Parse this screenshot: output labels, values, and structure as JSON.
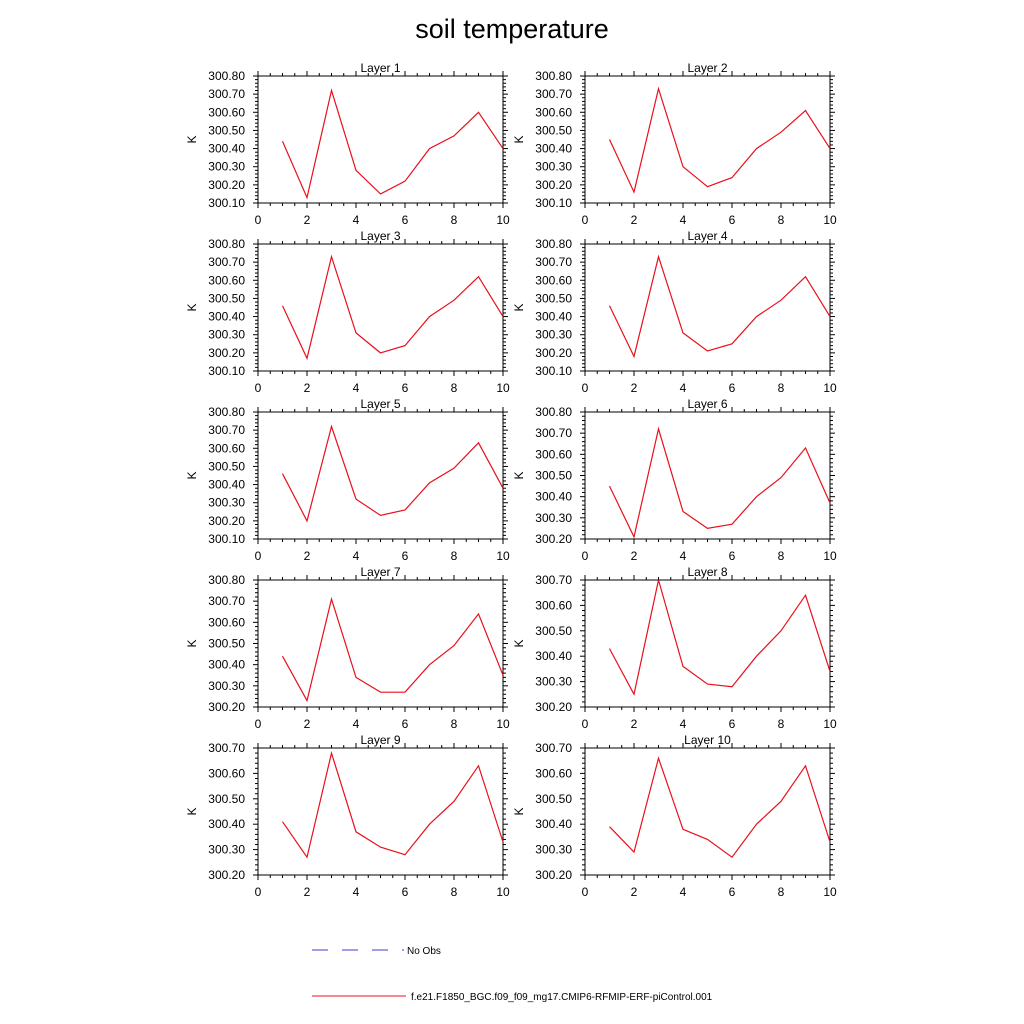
{
  "title": "soil temperature",
  "chart_data": [
    {
      "type": "line",
      "title": "Layer 1",
      "ylabel": "K",
      "xlim": [
        0,
        10
      ],
      "ylim": [
        300.1,
        300.8
      ],
      "xticks": [
        0,
        2,
        4,
        6,
        8,
        10
      ],
      "xticklabels": [
        "0",
        "2",
        "4",
        "6",
        "8",
        "10"
      ],
      "yticks": [
        300.1,
        300.2,
        300.3,
        300.4,
        300.5,
        300.6,
        300.7,
        300.8
      ],
      "yticklabels": [
        "300.10",
        "300.20",
        "300.30",
        "300.40",
        "300.50",
        "300.60",
        "300.70",
        "300.80"
      ],
      "x": [
        1,
        2,
        3,
        4,
        5,
        6,
        7,
        8,
        9,
        10
      ],
      "values": [
        300.44,
        300.13,
        300.72,
        300.28,
        300.15,
        300.22,
        300.4,
        300.47,
        300.6,
        300.4
      ]
    },
    {
      "type": "line",
      "title": "Layer 2",
      "ylabel": "K",
      "xlim": [
        0,
        10
      ],
      "ylim": [
        300.1,
        300.8
      ],
      "xticks": [
        0,
        2,
        4,
        6,
        8,
        10
      ],
      "xticklabels": [
        "0",
        "2",
        "4",
        "6",
        "8",
        "10"
      ],
      "yticks": [
        300.1,
        300.2,
        300.3,
        300.4,
        300.5,
        300.6,
        300.7,
        300.8
      ],
      "yticklabels": [
        "300.10",
        "300.20",
        "300.30",
        "300.40",
        "300.50",
        "300.60",
        "300.70",
        "300.80"
      ],
      "x": [
        1,
        2,
        3,
        4,
        5,
        6,
        7,
        8,
        9,
        10
      ],
      "values": [
        300.45,
        300.16,
        300.73,
        300.3,
        300.19,
        300.24,
        300.4,
        300.49,
        300.61,
        300.4
      ]
    },
    {
      "type": "line",
      "title": "Layer 3",
      "ylabel": "K",
      "xlim": [
        0,
        10
      ],
      "ylim": [
        300.1,
        300.8
      ],
      "xticks": [
        0,
        2,
        4,
        6,
        8,
        10
      ],
      "xticklabels": [
        "0",
        "2",
        "4",
        "6",
        "8",
        "10"
      ],
      "yticks": [
        300.1,
        300.2,
        300.3,
        300.4,
        300.5,
        300.6,
        300.7,
        300.8
      ],
      "yticklabels": [
        "300.10",
        "300.20",
        "300.30",
        "300.40",
        "300.50",
        "300.60",
        "300.70",
        "300.80"
      ],
      "x": [
        1,
        2,
        3,
        4,
        5,
        6,
        7,
        8,
        9,
        10
      ],
      "values": [
        300.46,
        300.17,
        300.73,
        300.31,
        300.2,
        300.24,
        300.4,
        300.49,
        300.62,
        300.4
      ]
    },
    {
      "type": "line",
      "title": "Layer 4",
      "ylabel": "K",
      "xlim": [
        0,
        10
      ],
      "ylim": [
        300.1,
        300.8
      ],
      "xticks": [
        0,
        2,
        4,
        6,
        8,
        10
      ],
      "xticklabels": [
        "0",
        "2",
        "4",
        "6",
        "8",
        "10"
      ],
      "yticks": [
        300.1,
        300.2,
        300.3,
        300.4,
        300.5,
        300.6,
        300.7,
        300.8
      ],
      "yticklabels": [
        "300.10",
        "300.20",
        "300.30",
        "300.40",
        "300.50",
        "300.60",
        "300.70",
        "300.80"
      ],
      "x": [
        1,
        2,
        3,
        4,
        5,
        6,
        7,
        8,
        9,
        10
      ],
      "values": [
        300.46,
        300.18,
        300.73,
        300.31,
        300.21,
        300.25,
        300.4,
        300.49,
        300.62,
        300.4
      ]
    },
    {
      "type": "line",
      "title": "Layer 5",
      "ylabel": "K",
      "xlim": [
        0,
        10
      ],
      "ylim": [
        300.1,
        300.8
      ],
      "xticks": [
        0,
        2,
        4,
        6,
        8,
        10
      ],
      "xticklabels": [
        "0",
        "2",
        "4",
        "6",
        "8",
        "10"
      ],
      "yticks": [
        300.1,
        300.2,
        300.3,
        300.4,
        300.5,
        300.6,
        300.7,
        300.8
      ],
      "yticklabels": [
        "300.10",
        "300.20",
        "300.30",
        "300.40",
        "300.50",
        "300.60",
        "300.70",
        "300.80"
      ],
      "x": [
        1,
        2,
        3,
        4,
        5,
        6,
        7,
        8,
        9,
        10
      ],
      "values": [
        300.46,
        300.2,
        300.72,
        300.32,
        300.23,
        300.26,
        300.41,
        300.49,
        300.63,
        300.38
      ]
    },
    {
      "type": "line",
      "title": "Layer 6",
      "ylabel": "K",
      "xlim": [
        0,
        10
      ],
      "ylim": [
        300.2,
        300.8
      ],
      "xticks": [
        0,
        2,
        4,
        6,
        8,
        10
      ],
      "xticklabels": [
        "0",
        "2",
        "4",
        "6",
        "8",
        "10"
      ],
      "yticks": [
        300.2,
        300.3,
        300.4,
        300.5,
        300.6,
        300.7,
        300.8
      ],
      "yticklabels": [
        "300.20",
        "300.30",
        "300.40",
        "300.50",
        "300.60",
        "300.70",
        "300.80"
      ],
      "x": [
        1,
        2,
        3,
        4,
        5,
        6,
        7,
        8,
        9,
        10
      ],
      "values": [
        300.45,
        300.21,
        300.72,
        300.33,
        300.25,
        300.27,
        300.4,
        300.49,
        300.63,
        300.37
      ]
    },
    {
      "type": "line",
      "title": "Layer 7",
      "ylabel": "K",
      "xlim": [
        0,
        10
      ],
      "ylim": [
        300.2,
        300.8
      ],
      "xticks": [
        0,
        2,
        4,
        6,
        8,
        10
      ],
      "xticklabels": [
        "0",
        "2",
        "4",
        "6",
        "8",
        "10"
      ],
      "yticks": [
        300.2,
        300.3,
        300.4,
        300.5,
        300.6,
        300.7,
        300.8
      ],
      "yticklabels": [
        "300.20",
        "300.30",
        "300.40",
        "300.50",
        "300.60",
        "300.70",
        "300.80"
      ],
      "x": [
        1,
        2,
        3,
        4,
        5,
        6,
        7,
        8,
        9,
        10
      ],
      "values": [
        300.44,
        300.23,
        300.71,
        300.34,
        300.27,
        300.27,
        300.4,
        300.49,
        300.64,
        300.35
      ]
    },
    {
      "type": "line",
      "title": "Layer 8",
      "ylabel": "K",
      "xlim": [
        0,
        10
      ],
      "ylim": [
        300.2,
        300.7
      ],
      "xticks": [
        0,
        2,
        4,
        6,
        8,
        10
      ],
      "xticklabels": [
        "0",
        "2",
        "4",
        "6",
        "8",
        "10"
      ],
      "yticks": [
        300.2,
        300.3,
        300.4,
        300.5,
        300.6,
        300.7
      ],
      "yticklabels": [
        "300.20",
        "300.30",
        "300.40",
        "300.50",
        "300.60",
        "300.70"
      ],
      "x": [
        1,
        2,
        3,
        4,
        5,
        6,
        7,
        8,
        9,
        10
      ],
      "values": [
        300.43,
        300.25,
        300.7,
        300.36,
        300.29,
        300.28,
        300.4,
        300.5,
        300.64,
        300.34
      ]
    },
    {
      "type": "line",
      "title": "Layer 9",
      "ylabel": "K",
      "xlim": [
        0,
        10
      ],
      "ylim": [
        300.2,
        300.7
      ],
      "xticks": [
        0,
        2,
        4,
        6,
        8,
        10
      ],
      "xticklabels": [
        "0",
        "2",
        "4",
        "6",
        "8",
        "10"
      ],
      "yticks": [
        300.2,
        300.3,
        300.4,
        300.5,
        300.6,
        300.7
      ],
      "yticklabels": [
        "300.20",
        "300.30",
        "300.40",
        "300.50",
        "300.60",
        "300.70"
      ],
      "x": [
        1,
        2,
        3,
        4,
        5,
        6,
        7,
        8,
        9,
        10
      ],
      "values": [
        300.41,
        300.27,
        300.68,
        300.37,
        300.31,
        300.28,
        300.4,
        300.49,
        300.63,
        300.33
      ]
    },
    {
      "type": "line",
      "title": "Layer 10",
      "ylabel": "K",
      "xlim": [
        0,
        10
      ],
      "ylim": [
        300.2,
        300.7
      ],
      "xticks": [
        0,
        2,
        4,
        6,
        8,
        10
      ],
      "xticklabels": [
        "0",
        "2",
        "4",
        "6",
        "8",
        "10"
      ],
      "yticks": [
        300.2,
        300.3,
        300.4,
        300.5,
        300.6,
        300.7
      ],
      "yticklabels": [
        "300.20",
        "300.30",
        "300.40",
        "300.50",
        "300.60",
        "300.70"
      ],
      "x": [
        1,
        2,
        3,
        4,
        5,
        6,
        7,
        8,
        9,
        10
      ],
      "values": [
        300.39,
        300.29,
        300.66,
        300.38,
        300.34,
        300.27,
        300.4,
        300.49,
        300.63,
        300.33
      ]
    }
  ],
  "legend": {
    "items": [
      {
        "label": "No Obs",
        "color": "#3b3bd6",
        "style": "dashed"
      },
      {
        "label": "f.e21.F1850_BGC.f09_f09_mg17.CMIP6-RFMIP-ERF-piControl.001",
        "color": "#e8101c",
        "style": "solid"
      }
    ]
  },
  "colors": {
    "series": "#e8101c",
    "axes": "#000000"
  }
}
